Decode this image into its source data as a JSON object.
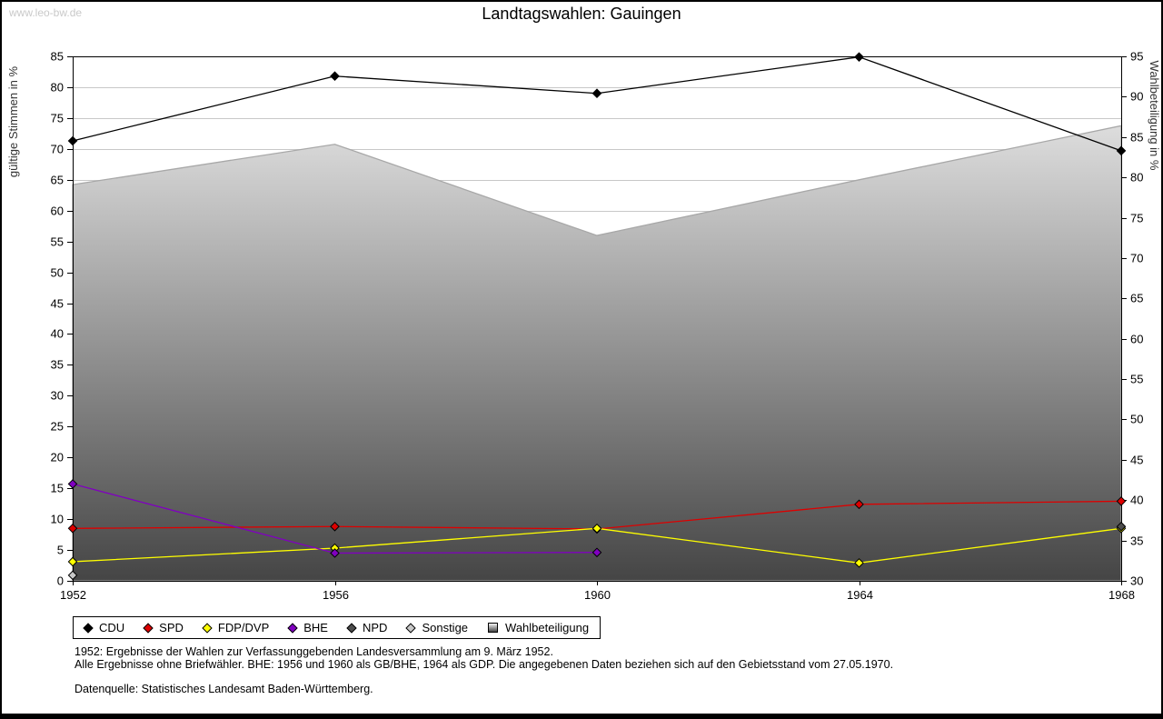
{
  "page": {
    "watermark": "www.leo-bw.de",
    "title": "Landtagswahlen: Gauingen"
  },
  "chart_data": {
    "type": "line",
    "title": "Landtagswahlen: Gauingen",
    "x": [
      1952,
      1956,
      1960,
      1964,
      1968
    ],
    "left_axis": {
      "label": "gültige Stimmen in %",
      "min": 0,
      "max": 85,
      "step": 5
    },
    "right_axis": {
      "label": "Wahlbeteiligung in %",
      "min": 30,
      "max": 95,
      "step": 5
    },
    "grid": true,
    "series": [
      {
        "name": "CDU",
        "color": "#000000",
        "axis": "left",
        "values": [
          71.3,
          81.8,
          79.0,
          84.9,
          69.7
        ]
      },
      {
        "name": "SPD",
        "color": "#dd0000",
        "axis": "left",
        "values": [
          8.5,
          8.8,
          8.4,
          12.4,
          12.9
        ]
      },
      {
        "name": "FDP/DVP",
        "color": "#ffff00",
        "axis": "left",
        "values": [
          3.1,
          5.3,
          8.5,
          2.9,
          8.5
        ]
      },
      {
        "name": "BHE",
        "color": "#8000c0",
        "axis": "left",
        "values": [
          15.7,
          4.5,
          4.6,
          null,
          null
        ]
      },
      {
        "name": "NPD",
        "color": "#4d4d4d",
        "axis": "left",
        "values": [
          null,
          null,
          null,
          null,
          8.8
        ]
      },
      {
        "name": "Sonstige",
        "color": "#c8c8c8",
        "axis": "left",
        "values": [
          0.9,
          null,
          null,
          null,
          null
        ]
      }
    ],
    "area_series": {
      "name": "Wahlbeteiligung",
      "axis": "right",
      "values": [
        79.1,
        84.1,
        72.8,
        79.7,
        86.4
      ],
      "stroke": "#a8a8a8",
      "gradient_top": "#f4f4f4",
      "gradient_bottom": "#454545"
    }
  },
  "legend": {
    "items": [
      {
        "label": "CDU",
        "shape": "diamond",
        "color": "#000000"
      },
      {
        "label": "SPD",
        "shape": "diamond",
        "color": "#dd0000"
      },
      {
        "label": "FDP/DVP",
        "shape": "diamond",
        "color": "#ffff00"
      },
      {
        "label": "BHE",
        "shape": "diamond",
        "color": "#8000c0"
      },
      {
        "label": "NPD",
        "shape": "diamond",
        "color": "#4d4d4d"
      },
      {
        "label": "Sonstige",
        "shape": "diamond",
        "color": "#c8c8c8"
      },
      {
        "label": "Wahlbeteiligung",
        "shape": "square",
        "color": "#b4b4b4"
      }
    ]
  },
  "footnotes": {
    "line1": "1952: Ergebnisse der Wahlen zur Verfassunggebenden Landesversammlung am 9. März 1952.",
    "line2": "Alle Ergebnisse ohne Briefwähler. BHE: 1956 und 1960 als GB/BHE, 1964 als GDP. Die angegebenen Daten beziehen sich auf den Gebietsstand vom 27.05.1970.",
    "source": "Datenquelle: Statistisches Landesamt Baden-Württemberg."
  }
}
